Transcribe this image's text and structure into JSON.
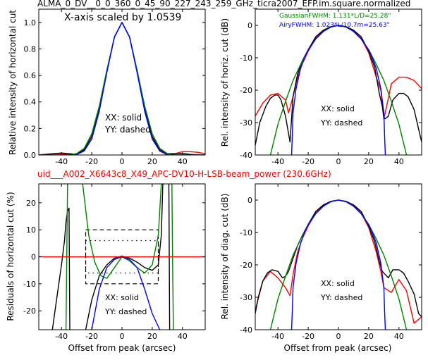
{
  "page": {
    "top_title": "ALMA_0_DV__0_0_360_0_45_90_227_243_259_GHz_ticra2007_EFP.im.square.normalized",
    "middle_title": "uid___A002_X6643c8_X49_APC-DV10-H-LSB-beam_power (230.6GHz)",
    "colors": {
      "red": "#ff0000",
      "green": "#008000",
      "blue": "#0000ff",
      "black": "#000000"
    }
  },
  "panels": {
    "tl": {
      "annotation": "X-axis scaled by 1.0539",
      "ylabel": "Relative intensity of horizontal cut",
      "legend": [
        "XX: solid",
        "YY: dashed"
      ]
    },
    "tr": {
      "ylabel": "Rel. intensity of horiz. cut (dB)",
      "fwhm_gaussian": "GaussianFWHM: 1.131*L/D=25.28\"",
      "fwhm_airy": "AiryFWHM: 1.023*L/10.7m=25.63\"",
      "legend": [
        "XX: solid",
        "YY: dashed"
      ]
    },
    "bl": {
      "ylabel": "Residuals of horizontal cut (%)",
      "xlabel": "Offset from peak (arcsec)",
      "legend": [
        "XX: solid",
        "YY: dashed"
      ]
    },
    "br": {
      "ylabel": "Rel. intensity of diag. cut (dB)",
      "xlabel": "Offset from peak (arcsec)",
      "legend": [
        "XX: solid",
        "YY: dashed"
      ]
    }
  },
  "chart_data": [
    {
      "type": "line",
      "panel": "tl",
      "ylabel": "Relative intensity of horizontal cut",
      "xlim": [
        -55,
        55
      ],
      "ylim": [
        0,
        1.1
      ],
      "xticks": [
        -40,
        -20,
        0,
        20,
        40
      ],
      "yticks": [
        0.0,
        0.2,
        0.4,
        0.6,
        0.8,
        1.0
      ],
      "series": [
        {
          "color": "red",
          "x": [
            -55,
            -45,
            -40,
            -35,
            -30,
            -25,
            -20,
            -15,
            -10,
            -5,
            0,
            5,
            10,
            15,
            20,
            25,
            30,
            35,
            40,
            45,
            50,
            55
          ],
          "y": [
            0,
            0.01,
            0.01,
            0,
            0.01,
            0.04,
            0.14,
            0.35,
            0.63,
            0.89,
            1.0,
            0.89,
            0.63,
            0.35,
            0.13,
            0.03,
            0,
            0.01,
            0.025,
            0.025,
            0.02,
            0.01
          ]
        },
        {
          "color": "black",
          "x": [
            -55,
            -45,
            -40,
            -35,
            -30,
            -25,
            -20,
            -15,
            -10,
            -5,
            0,
            5,
            10,
            15,
            20,
            25,
            30,
            35,
            40,
            45,
            50,
            55
          ],
          "y": [
            0,
            0.01,
            0.015,
            0.01,
            0.005,
            0.04,
            0.14,
            0.35,
            0.63,
            0.89,
            1.0,
            0.89,
            0.63,
            0.35,
            0.14,
            0.04,
            0.01,
            0.01,
            0.012,
            0.005,
            0,
            0
          ]
        },
        {
          "color": "green",
          "x": [
            -55,
            -45,
            -35,
            -30,
            -25,
            -20,
            -15,
            -10,
            -5,
            0,
            5,
            10,
            15,
            20,
            25,
            30,
            35,
            40,
            45,
            55
          ],
          "y": [
            0,
            0,
            0,
            0.01,
            0.05,
            0.16,
            0.37,
            0.64,
            0.89,
            1.0,
            0.89,
            0.64,
            0.37,
            0.16,
            0.05,
            0.01,
            0,
            0,
            0,
            0
          ]
        },
        {
          "color": "blue",
          "x": [
            -55,
            -45,
            -35,
            -30,
            -25,
            -20,
            -15,
            -10,
            -5,
            0,
            5,
            10,
            15,
            20,
            25,
            30,
            35,
            45,
            55
          ],
          "y": [
            0,
            0,
            0,
            0.003,
            0.03,
            0.12,
            0.33,
            0.62,
            0.89,
            1.0,
            0.89,
            0.62,
            0.33,
            0.12,
            0.03,
            0.003,
            0,
            0,
            0
          ]
        }
      ]
    },
    {
      "type": "line",
      "panel": "tr",
      "ylabel": "Rel. intensity of horiz. cut (dB)",
      "xlim": [
        -55,
        55
      ],
      "ylim": [
        -40,
        5
      ],
      "xticks": [
        -40,
        -20,
        0,
        20,
        40
      ],
      "yticks": [
        0,
        -10,
        -20,
        -30,
        -40
      ],
      "series": [
        {
          "color": "red",
          "x": [
            -55,
            -50,
            -45,
            -40,
            -35,
            -33,
            -30,
            -27,
            -24,
            -20,
            -15,
            -10,
            -5,
            0,
            5,
            10,
            15,
            20,
            25,
            28,
            30,
            35,
            40,
            45,
            50,
            55
          ],
          "y": [
            -28,
            -24,
            -21.5,
            -21,
            -23,
            -27,
            -22,
            -16,
            -12,
            -8,
            -4,
            -1.7,
            -0.4,
            0,
            -0.4,
            -1.7,
            -4,
            -8.5,
            -16,
            -20,
            -29,
            -18,
            -16,
            -16,
            -17,
            -19.5
          ]
        },
        {
          "color": "black",
          "x": [
            -55,
            -52,
            -48,
            -45,
            -42,
            -40,
            -38,
            -35,
            -32,
            -30,
            -27,
            -24,
            -20,
            -15,
            -10,
            -5,
            0,
            5,
            10,
            15,
            20,
            24,
            27,
            29,
            30,
            31,
            33,
            36,
            40,
            43,
            46,
            50,
            53,
            55
          ],
          "y": [
            -37,
            -30,
            -25,
            -22.5,
            -21.5,
            -21.5,
            -23,
            -28,
            -36,
            -22,
            -15,
            -11,
            -7.5,
            -3.5,
            -1.5,
            -0.4,
            0,
            -0.4,
            -1.5,
            -3.5,
            -8,
            -13,
            -21,
            -25,
            -28.5,
            -28.8,
            -28,
            -23,
            -21,
            -21,
            -22,
            -26,
            -32,
            -36
          ]
        },
        {
          "color": "green",
          "x": [
            -45,
            -40,
            -35,
            -30,
            -25,
            -20,
            -15,
            -10,
            -5,
            0,
            5,
            10,
            15,
            20,
            25,
            30,
            35,
            40,
            45
          ],
          "y": [
            -40,
            -30.5,
            -23.5,
            -17,
            -12,
            -7.5,
            -4.2,
            -1.9,
            -0.5,
            0,
            -0.5,
            -1.9,
            -4.2,
            -7.5,
            -12,
            -17,
            -23.5,
            -30.5,
            -40
          ]
        },
        {
          "color": "blue",
          "x": [
            -31,
            -30.5,
            -30,
            -28,
            -25,
            -22,
            -20,
            -15,
            -10,
            -5,
            0,
            5,
            10,
            15,
            20,
            22,
            25,
            28,
            30,
            30.5,
            31
          ],
          "y": [
            -40,
            -34,
            -27,
            -19.5,
            -13.2,
            -9.5,
            -7.6,
            -4.2,
            -1.9,
            -0.5,
            0,
            -0.5,
            -1.9,
            -4.2,
            -7.6,
            -9.5,
            -13.2,
            -19.5,
            -27,
            -34,
            -40
          ]
        }
      ]
    },
    {
      "type": "line",
      "panel": "bl",
      "ylabel": "Residuals of horizontal cut (%)",
      "xlabel": "Offset from peak (arcsec)",
      "xlim": [
        -55,
        55
      ],
      "ylim": [
        -27,
        27
      ],
      "xticks": [
        -40,
        -20,
        0,
        20,
        40
      ],
      "yticks": [
        20,
        10,
        0,
        -10,
        -20
      ],
      "series": [
        {
          "color": "black",
          "x": [
            -46,
            -43,
            -40,
            -38,
            -37,
            -36,
            -35,
            -34.5
          ],
          "y": [
            -27,
            -15,
            -3,
            6,
            13,
            17,
            18,
            -27
          ]
        },
        {
          "color": "black",
          "x": [
            -24,
            -20,
            -15,
            -10,
            -5,
            0,
            5,
            10,
            15,
            20,
            24,
            26,
            27,
            28
          ],
          "y": [
            -27,
            -16,
            -7,
            -3,
            -0.5,
            0.3,
            -0.5,
            -2,
            -4,
            -5,
            -3,
            8,
            27,
            27
          ]
        },
        {
          "color": "black",
          "x": [
            31,
            31.5,
            32
          ],
          "y": [
            27,
            -27,
            -27
          ]
        },
        {
          "color": "green",
          "x": [
            -37,
            -36.5,
            -36
          ],
          "y": [
            -27,
            0,
            27
          ]
        },
        {
          "color": "green",
          "x": [
            -26,
            -22,
            -18,
            -14,
            -10,
            -5,
            0,
            5,
            10,
            15,
            20,
            24,
            26
          ],
          "y": [
            27,
            8,
            -2,
            -7,
            -8,
            -4,
            0,
            -1.5,
            -4,
            -6,
            -3,
            8,
            27
          ]
        },
        {
          "color": "green",
          "x": [
            33,
            33.5,
            34
          ],
          "y": [
            27,
            -5,
            -27
          ]
        },
        {
          "color": "blue",
          "x": [
            -20,
            -15,
            -10,
            -5,
            0,
            5,
            10,
            15,
            20,
            25
          ],
          "y": [
            -27,
            -12,
            -4,
            -1,
            0,
            -1,
            -4,
            -12,
            -21,
            -27
          ]
        },
        {
          "color": "red",
          "x": [
            -55,
            55
          ],
          "y": [
            0,
            0
          ]
        }
      ]
    },
    {
      "type": "line",
      "panel": "br",
      "ylabel": "Rel. intensity of diag. cut (dB)",
      "xlabel": "Offset from peak (arcsec)",
      "xlim": [
        -55,
        55
      ],
      "ylim": [
        -40,
        5
      ],
      "xticks": [
        -40,
        -20,
        0,
        20,
        40
      ],
      "yticks": [
        0,
        -10,
        -20,
        -30,
        -40
      ],
      "series": [
        {
          "color": "red",
          "x": [
            -55,
            -50,
            -45,
            -40,
            -35,
            -32,
            -30,
            -27,
            -24,
            -20,
            -15,
            -10,
            -5,
            0,
            5,
            10,
            15,
            20,
            25,
            28,
            30,
            35,
            40,
            45,
            50,
            55
          ],
          "y": [
            -34,
            -25,
            -22,
            -24,
            -27,
            -29.5,
            -23,
            -16,
            -12,
            -8,
            -4,
            -1.7,
            -0.4,
            0,
            -0.4,
            -1.7,
            -4,
            -8.5,
            -16,
            -22,
            -27,
            -28.5,
            -24.5,
            -28,
            -38,
            -36
          ]
        },
        {
          "color": "black",
          "x": [
            -55,
            -53,
            -50,
            -47,
            -44,
            -40,
            -37,
            -35,
            -33,
            -30,
            -27,
            -24,
            -20,
            -15,
            -10,
            -5,
            0,
            5,
            10,
            15,
            20,
            24,
            27,
            29,
            31,
            33,
            36,
            40,
            43,
            46,
            50,
            53,
            55
          ],
          "y": [
            -35,
            -30,
            -25,
            -22.5,
            -21.5,
            -22,
            -24,
            -23.5,
            -22,
            -18,
            -14,
            -11,
            -7.5,
            -3.5,
            -1.5,
            -0.4,
            0,
            -0.4,
            -1.5,
            -3.5,
            -8,
            -13,
            -19,
            -22,
            -23,
            -24,
            -21.5,
            -21.5,
            -22.5,
            -25,
            -29,
            -35,
            -36
          ]
        },
        {
          "color": "green",
          "x": [
            -45,
            -40,
            -35,
            -30,
            -25,
            -20,
            -15,
            -10,
            -5,
            0,
            5,
            10,
            15,
            20,
            25,
            30,
            35,
            40,
            45
          ],
          "y": [
            -40,
            -30.5,
            -23.5,
            -17,
            -12,
            -7.5,
            -4.2,
            -1.9,
            -0.5,
            0,
            -0.5,
            -1.9,
            -4.2,
            -7.5,
            -12,
            -17,
            -23.5,
            -30.5,
            -40
          ]
        },
        {
          "color": "blue",
          "x": [
            -31,
            -30.5,
            -30,
            -28,
            -25,
            -22,
            -20,
            -15,
            -10,
            -5,
            0,
            5,
            10,
            15,
            20,
            22,
            25,
            28,
            30,
            30.5,
            31
          ],
          "y": [
            -40,
            -34,
            -27,
            -19.5,
            -13.2,
            -9.5,
            -7.6,
            -4.2,
            -1.9,
            -0.5,
            0,
            -0.5,
            -1.9,
            -4.2,
            -7.6,
            -9.5,
            -13.2,
            -19.5,
            -27,
            -34,
            -40
          ]
        }
      ]
    }
  ]
}
